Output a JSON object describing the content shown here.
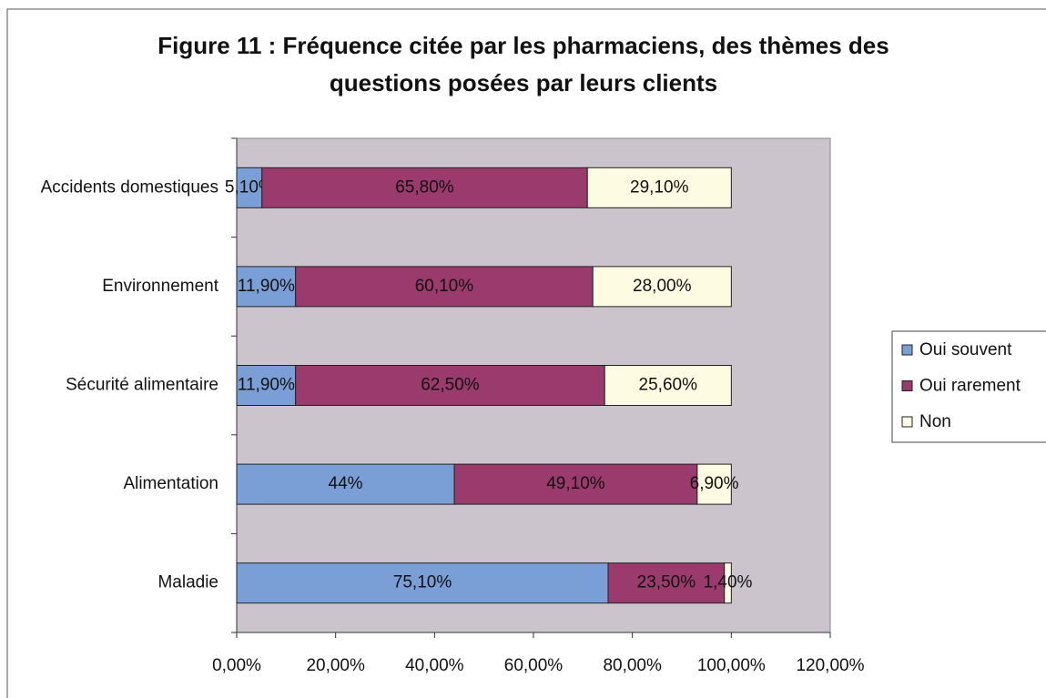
{
  "chart_data": {
    "type": "bar",
    "orientation": "horizontal",
    "stacked": true,
    "title": "Figure 11 : Fréquence citée par les pharmaciens, des thèmes des questions posées par leurs clients",
    "categories": [
      "Accidents domestiques",
      "Environnement",
      "Sécurité alimentaire",
      "Alimentation",
      "Maladie"
    ],
    "series": [
      {
        "name": "Oui souvent",
        "color": "#7a9fd6",
        "values": [
          5.1,
          11.9,
          11.9,
          44,
          75.1
        ],
        "value_labels": [
          "5,10%",
          "11,90%",
          "11,90%",
          "44%",
          "75,10%"
        ]
      },
      {
        "name": "Oui rarement",
        "color": "#9b3a6c",
        "values": [
          65.8,
          60.1,
          62.5,
          49.1,
          23.5
        ],
        "value_labels": [
          "65,80%",
          "60,10%",
          "62,50%",
          "49,10%",
          "23,50%"
        ]
      },
      {
        "name": "Non",
        "color": "#fdfbe2",
        "values": [
          29.1,
          28,
          25.6,
          6.9,
          1.4
        ],
        "value_labels": [
          "29,10%",
          "28,00%",
          "25,60%",
          "6,90%",
          "1,40%"
        ]
      }
    ],
    "xlim": [
      0,
      120
    ],
    "xticks": [
      {
        "value": 0,
        "label": "0,00%"
      },
      {
        "value": 20,
        "label": "20,00%"
      },
      {
        "value": 40,
        "label": "40,00%"
      },
      {
        "value": 60,
        "label": "60,00%"
      },
      {
        "value": 80,
        "label": "80,00%"
      },
      {
        "value": 100,
        "label": "100,00%"
      },
      {
        "value": 120,
        "label": "120,00%"
      }
    ],
    "legend": "right"
  }
}
